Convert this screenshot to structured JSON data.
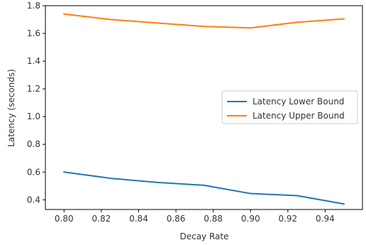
{
  "chart_data": {
    "type": "line",
    "xlabel": "Decay Rate",
    "ylabel": "Latency (seconds)",
    "xlim": [
      0.79,
      0.96
    ],
    "ylim": [
      0.33,
      1.8
    ],
    "xticks": [
      0.8,
      0.82,
      0.84,
      0.86,
      0.88,
      0.9,
      0.92,
      0.94
    ],
    "xtick_labels": [
      "0.80",
      "0.82",
      "0.84",
      "0.86",
      "0.88",
      "0.90",
      "0.92",
      "0.94"
    ],
    "yticks": [
      0.4,
      0.6,
      0.8,
      1.0,
      1.2,
      1.4,
      1.6,
      1.8
    ],
    "ytick_labels": [
      "0.4",
      "0.6",
      "0.8",
      "1.0",
      "1.2",
      "1.4",
      "1.6",
      "1.8"
    ],
    "grid": false,
    "legend_position": "center-right",
    "x": [
      0.8,
      0.825,
      0.85,
      0.875,
      0.9,
      0.925,
      0.95
    ],
    "series": [
      {
        "name": "Latency Lower Bound",
        "color": "#1f77b4",
        "values": [
          0.6,
          0.555,
          0.525,
          0.505,
          0.445,
          0.43,
          0.37
        ]
      },
      {
        "name": "Latency Upper Bound",
        "color": "#ff7f0e",
        "values": [
          1.74,
          1.7,
          1.675,
          1.65,
          1.64,
          1.68,
          1.705
        ]
      }
    ]
  }
}
